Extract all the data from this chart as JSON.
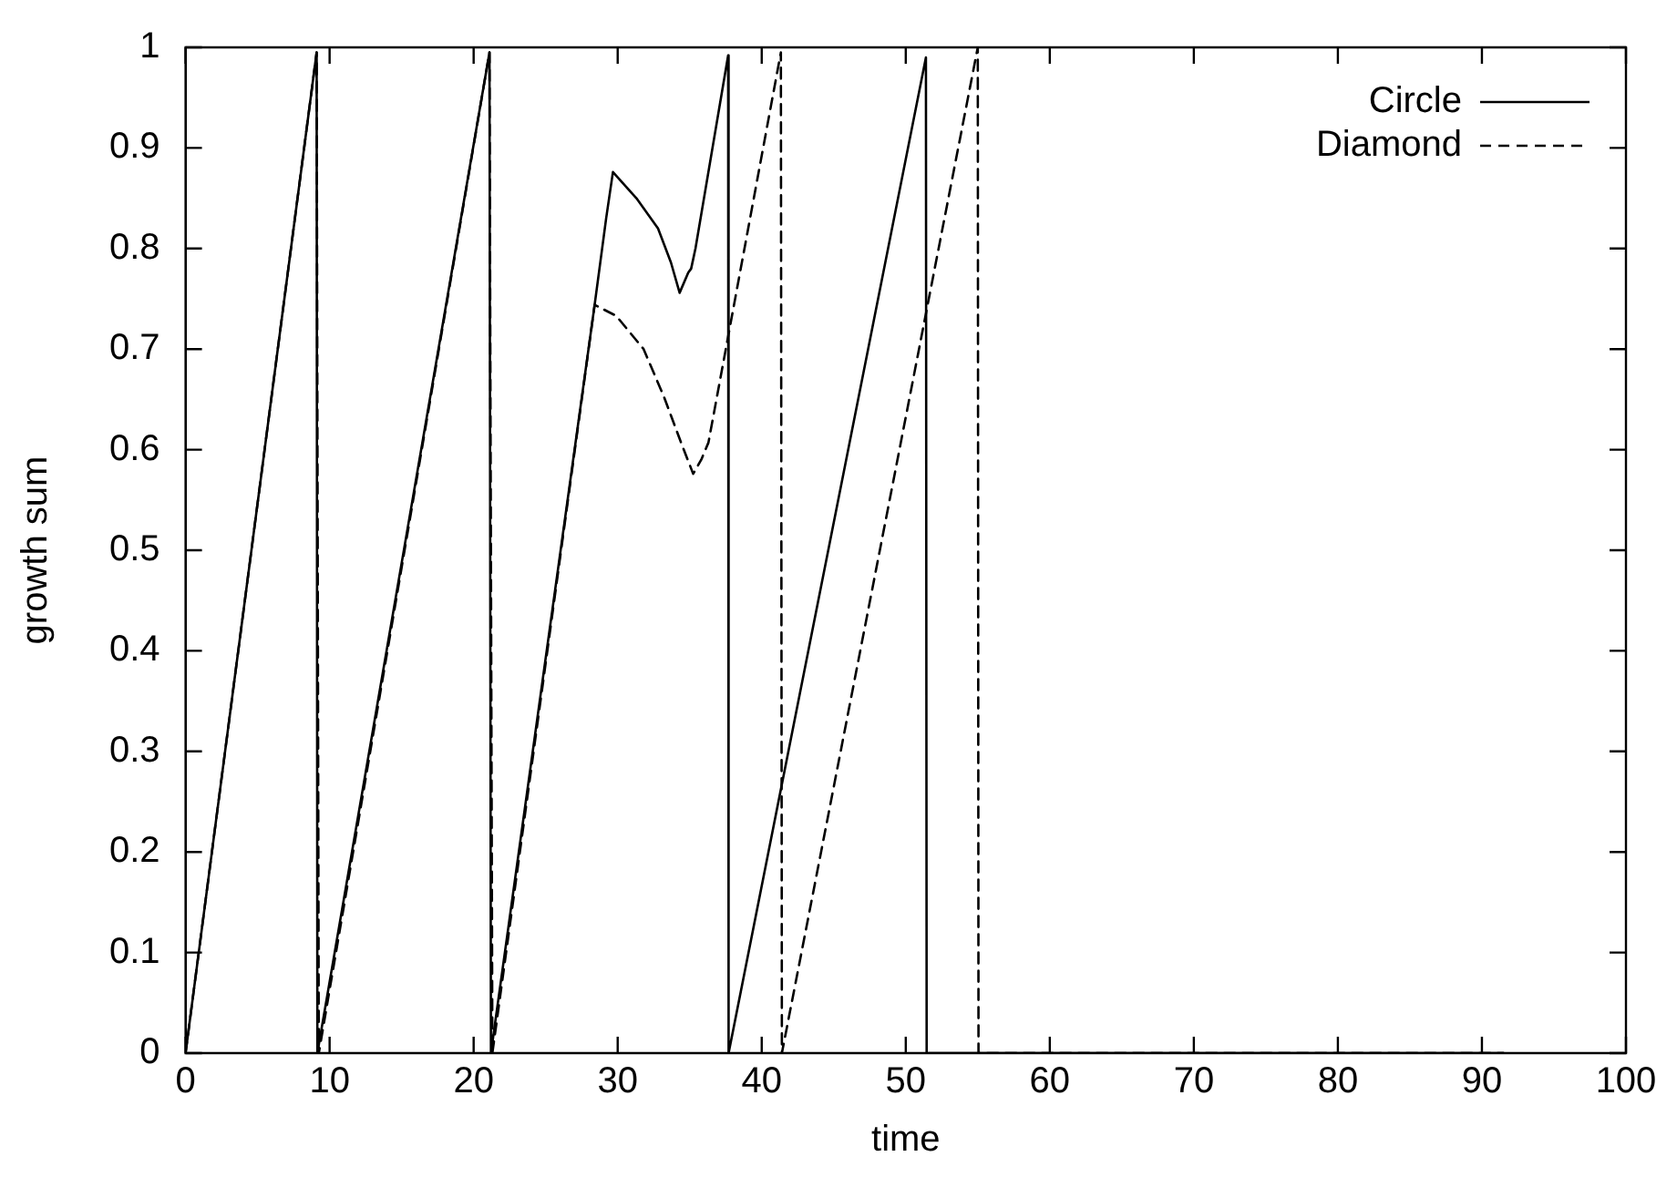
{
  "chart_data": {
    "type": "line",
    "xlabel": "time",
    "ylabel": "growth sum",
    "xlim": [
      0,
      100
    ],
    "ylim": [
      0,
      1
    ],
    "xticks": [
      0,
      10,
      20,
      30,
      40,
      50,
      60,
      70,
      80,
      90,
      100
    ],
    "yticks": [
      0,
      0.1,
      0.2,
      0.3,
      0.4,
      0.5,
      0.6,
      0.7,
      0.8,
      0.9,
      1
    ],
    "grid": false,
    "legend": "top right",
    "marker": "none",
    "series": [
      {
        "name": "Circle",
        "color": "#000000",
        "line_style": "solid",
        "x": [
          0,
          9.1,
          9.15,
          21.1,
          21.2,
          28.4,
          29.2,
          29.67,
          31.3,
          32.8,
          33.7,
          34.3,
          34.9,
          35.1,
          35.4,
          37.67,
          37.7,
          51.4,
          51.45,
          91.5
        ],
        "values": [
          0,
          0.995,
          0,
          0.995,
          0,
          0.744,
          0.83,
          0.876,
          0.85,
          0.82,
          0.786,
          0.756,
          0.776,
          0.78,
          0.8,
          0.992,
          0,
          0.99,
          0,
          0
        ]
      },
      {
        "name": "Diamond",
        "color": "#000000",
        "line_style": "dashed",
        "x": [
          0,
          9.1,
          9.25,
          21.1,
          21.3,
          28.4,
          29.9,
          31.8,
          33.2,
          34.4,
          35.24,
          35.8,
          36.3,
          41.33,
          41.4,
          55.0,
          55.05,
          91.5
        ],
        "values": [
          0,
          0.995,
          0,
          0.995,
          0,
          0.744,
          0.733,
          0.7,
          0.653,
          0.607,
          0.576,
          0.59,
          0.607,
          0.995,
          0,
          1.0,
          0,
          0
        ]
      }
    ]
  }
}
